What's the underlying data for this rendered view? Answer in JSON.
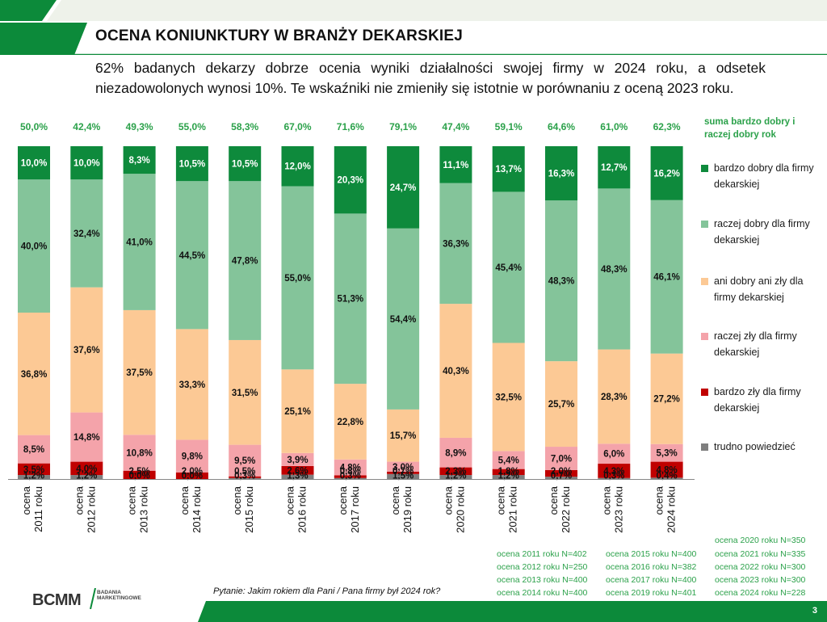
{
  "header": {
    "title": "OCENA KONIUNKTURY W BRANŻY DEKARSKIEJ",
    "subtitle": "62% badanych dekarzy dobrze ocenia wyniki działalności swojej firmy w 2024 roku, a odsetek niezadowolonych wynosi 10%. Te wskaźniki nie zmieniły się istotnie w porównaniu z oceną 2023 roku."
  },
  "colors": {
    "brand_green": "#0c8a3a",
    "very_good": "#0e8a3c",
    "rather_good": "#84c49a",
    "neutral": "#fcc995",
    "rather_bad": "#f4a3aa",
    "very_bad": "#c00000",
    "hard_to_say": "#7f7f7f",
    "sum_text": "#2ba14a"
  },
  "legend": {
    "sum_title": "suma bardzo dobry i raczej dobry rok",
    "items": [
      {
        "label": "bardzo dobry dla firmy dekarskiej",
        "color": "#0e8a3c"
      },
      {
        "label": "raczej dobry dla firmy dekarskiej",
        "color": "#84c49a"
      },
      {
        "label": "ani dobry ani zły dla firmy dekarskiej",
        "color": "#fcc995"
      },
      {
        "label": "raczej zły dla firmy dekarskiej",
        "color": "#f4a3aa"
      },
      {
        "label": "bardzo zły dla firmy dekarskiej",
        "color": "#c00000"
      },
      {
        "label": "trudno powiedzieć",
        "color": "#7f7f7f"
      }
    ]
  },
  "chart_data": {
    "type": "bar",
    "stacked": true,
    "percent_scale": [
      0,
      100
    ],
    "categories": [
      "ocena 2011 roku",
      "ocena 2012 roku",
      "ocena 2013 roku",
      "ocena 2014 roku",
      "ocena 2015 roku",
      "ocena 2016 roku",
      "ocena 2017 roku",
      "ocena 2019 roku",
      "ocena 2020 roku",
      "ocena 2021 roku",
      "ocena 2022 roku",
      "ocena 2023 roku",
      "ocena 2024 roku"
    ],
    "category_lines": [
      [
        "ocena",
        "2011 roku"
      ],
      [
        "ocena",
        "2012 roku"
      ],
      [
        "ocena",
        "2013 roku"
      ],
      [
        "ocena",
        "2014 roku"
      ],
      [
        "ocena",
        "2015 roku"
      ],
      [
        "ocena",
        "2016 roku"
      ],
      [
        "ocena",
        "2017 roku"
      ],
      [
        "ocena",
        "2019 roku"
      ],
      [
        "ocena",
        "2020 roku"
      ],
      [
        "ocena",
        "2021 roku"
      ],
      [
        "ocena",
        "2022 roku"
      ],
      [
        "ocena",
        "2023 roku"
      ],
      [
        "ocena",
        "2024 roku"
      ]
    ],
    "sum_labels": [
      "50,0%",
      "42,4%",
      "49,3%",
      "55,0%",
      "58,3%",
      "67,0%",
      "71,6%",
      "79,1%",
      "47,4%",
      "59,1%",
      "64,6%",
      "61,0%",
      "62,3%"
    ],
    "series": [
      {
        "name": "trudno powiedzieć",
        "values": [
          1.2,
          1.2,
          0.0,
          0.0,
          0.3,
          1.3,
          0.3,
          1.5,
          1.2,
          1.2,
          0.7,
          0.3,
          0.4
        ],
        "labels": [
          "1,2%",
          "1,2%",
          "0,0%",
          "0,0%",
          "0,3%",
          "1,3%",
          "0,3%",
          "1,5%",
          "1,2%",
          "1,2%",
          "0,7%",
          "0,3%",
          "0,4%"
        ]
      },
      {
        "name": "bardzo zły dla firmy dekarskiej",
        "values": [
          3.5,
          4.0,
          2.5,
          2.0,
          0.5,
          2.6,
          0.8,
          0.7,
          2.3,
          1.8,
          2.0,
          4.3,
          4.8
        ],
        "labels": [
          "3,5%",
          "4,0%",
          "2,5%",
          "2,0%",
          "0,5%",
          "2,6%",
          "0,8%",
          "0,7%",
          "2,3%",
          "1,8%",
          "2,0%",
          "4,3%",
          "4,8%"
        ]
      },
      {
        "name": "raczej zły dla firmy dekarskiej",
        "values": [
          8.5,
          14.8,
          10.8,
          9.8,
          9.5,
          3.9,
          4.8,
          3.0,
          8.9,
          5.4,
          7.0,
          6.0,
          5.3
        ],
        "labels": [
          "8,5%",
          "14,8%",
          "10,8%",
          "9,8%",
          "9,5%",
          "3,9%",
          "4,8%",
          "3,0%",
          "8,9%",
          "5,4%",
          "7,0%",
          "6,0%",
          "5,3%"
        ]
      },
      {
        "name": "ani dobry ani zły dla firmy dekarskiej",
        "values": [
          36.8,
          37.6,
          37.5,
          33.3,
          31.5,
          25.1,
          22.8,
          15.7,
          40.3,
          32.5,
          25.7,
          28.3,
          27.2
        ],
        "labels": [
          "36,8%",
          "37,6%",
          "37,5%",
          "33,3%",
          "31,5%",
          "25,1%",
          "22,8%",
          "15,7%",
          "40,3%",
          "32,5%",
          "25,7%",
          "28,3%",
          "27,2%"
        ]
      },
      {
        "name": "raczej dobry dla firmy dekarskiej",
        "values": [
          40.0,
          32.4,
          41.0,
          44.5,
          47.8,
          55.0,
          51.3,
          54.4,
          36.3,
          45.4,
          48.3,
          48.3,
          46.1
        ],
        "labels": [
          "40,0%",
          "32,4%",
          "41,0%",
          "44,5%",
          "47,8%",
          "55,0%",
          "51,3%",
          "54,4%",
          "36,3%",
          "45,4%",
          "48,3%",
          "48,3%",
          "46,1%"
        ]
      },
      {
        "name": "bardzo dobry dla firmy dekarskiej",
        "values": [
          10.0,
          10.0,
          8.3,
          10.5,
          10.5,
          12.0,
          20.3,
          24.7,
          11.1,
          13.7,
          16.3,
          12.7,
          16.2
        ],
        "labels": [
          "10,0%",
          "10,0%",
          "8,3%",
          "10,5%",
          "10,5%",
          "12,0%",
          "20,3%",
          "24,7%",
          "11,1%",
          "13,7%",
          "16,3%",
          "12,7%",
          "16,2%"
        ]
      }
    ]
  },
  "sample_sizes": [
    "ocena 2020 roku N=350",
    "ocena 2011 roku N=402",
    "ocena 2015 roku N=400",
    "ocena 2021 roku N=335",
    "ocena 2012 roku N=250",
    "ocena 2016 roku N=382",
    "ocena 2022 roku N=300",
    "ocena 2013 roku N=400",
    "ocena 2017 roku N=400",
    "ocena 2023 roku N=300",
    "ocena 2014 roku N=400",
    "ocena 2019 roku N=401",
    "ocena 2024 roku N=228"
  ],
  "footer": {
    "question": "Pytanie: Jakim rokiem dla Pani / Pana firmy był 2024 rok?",
    "logo": "BCMM",
    "logo_sub": "BADANIA MARKETINGOWE",
    "page_number": "3"
  }
}
